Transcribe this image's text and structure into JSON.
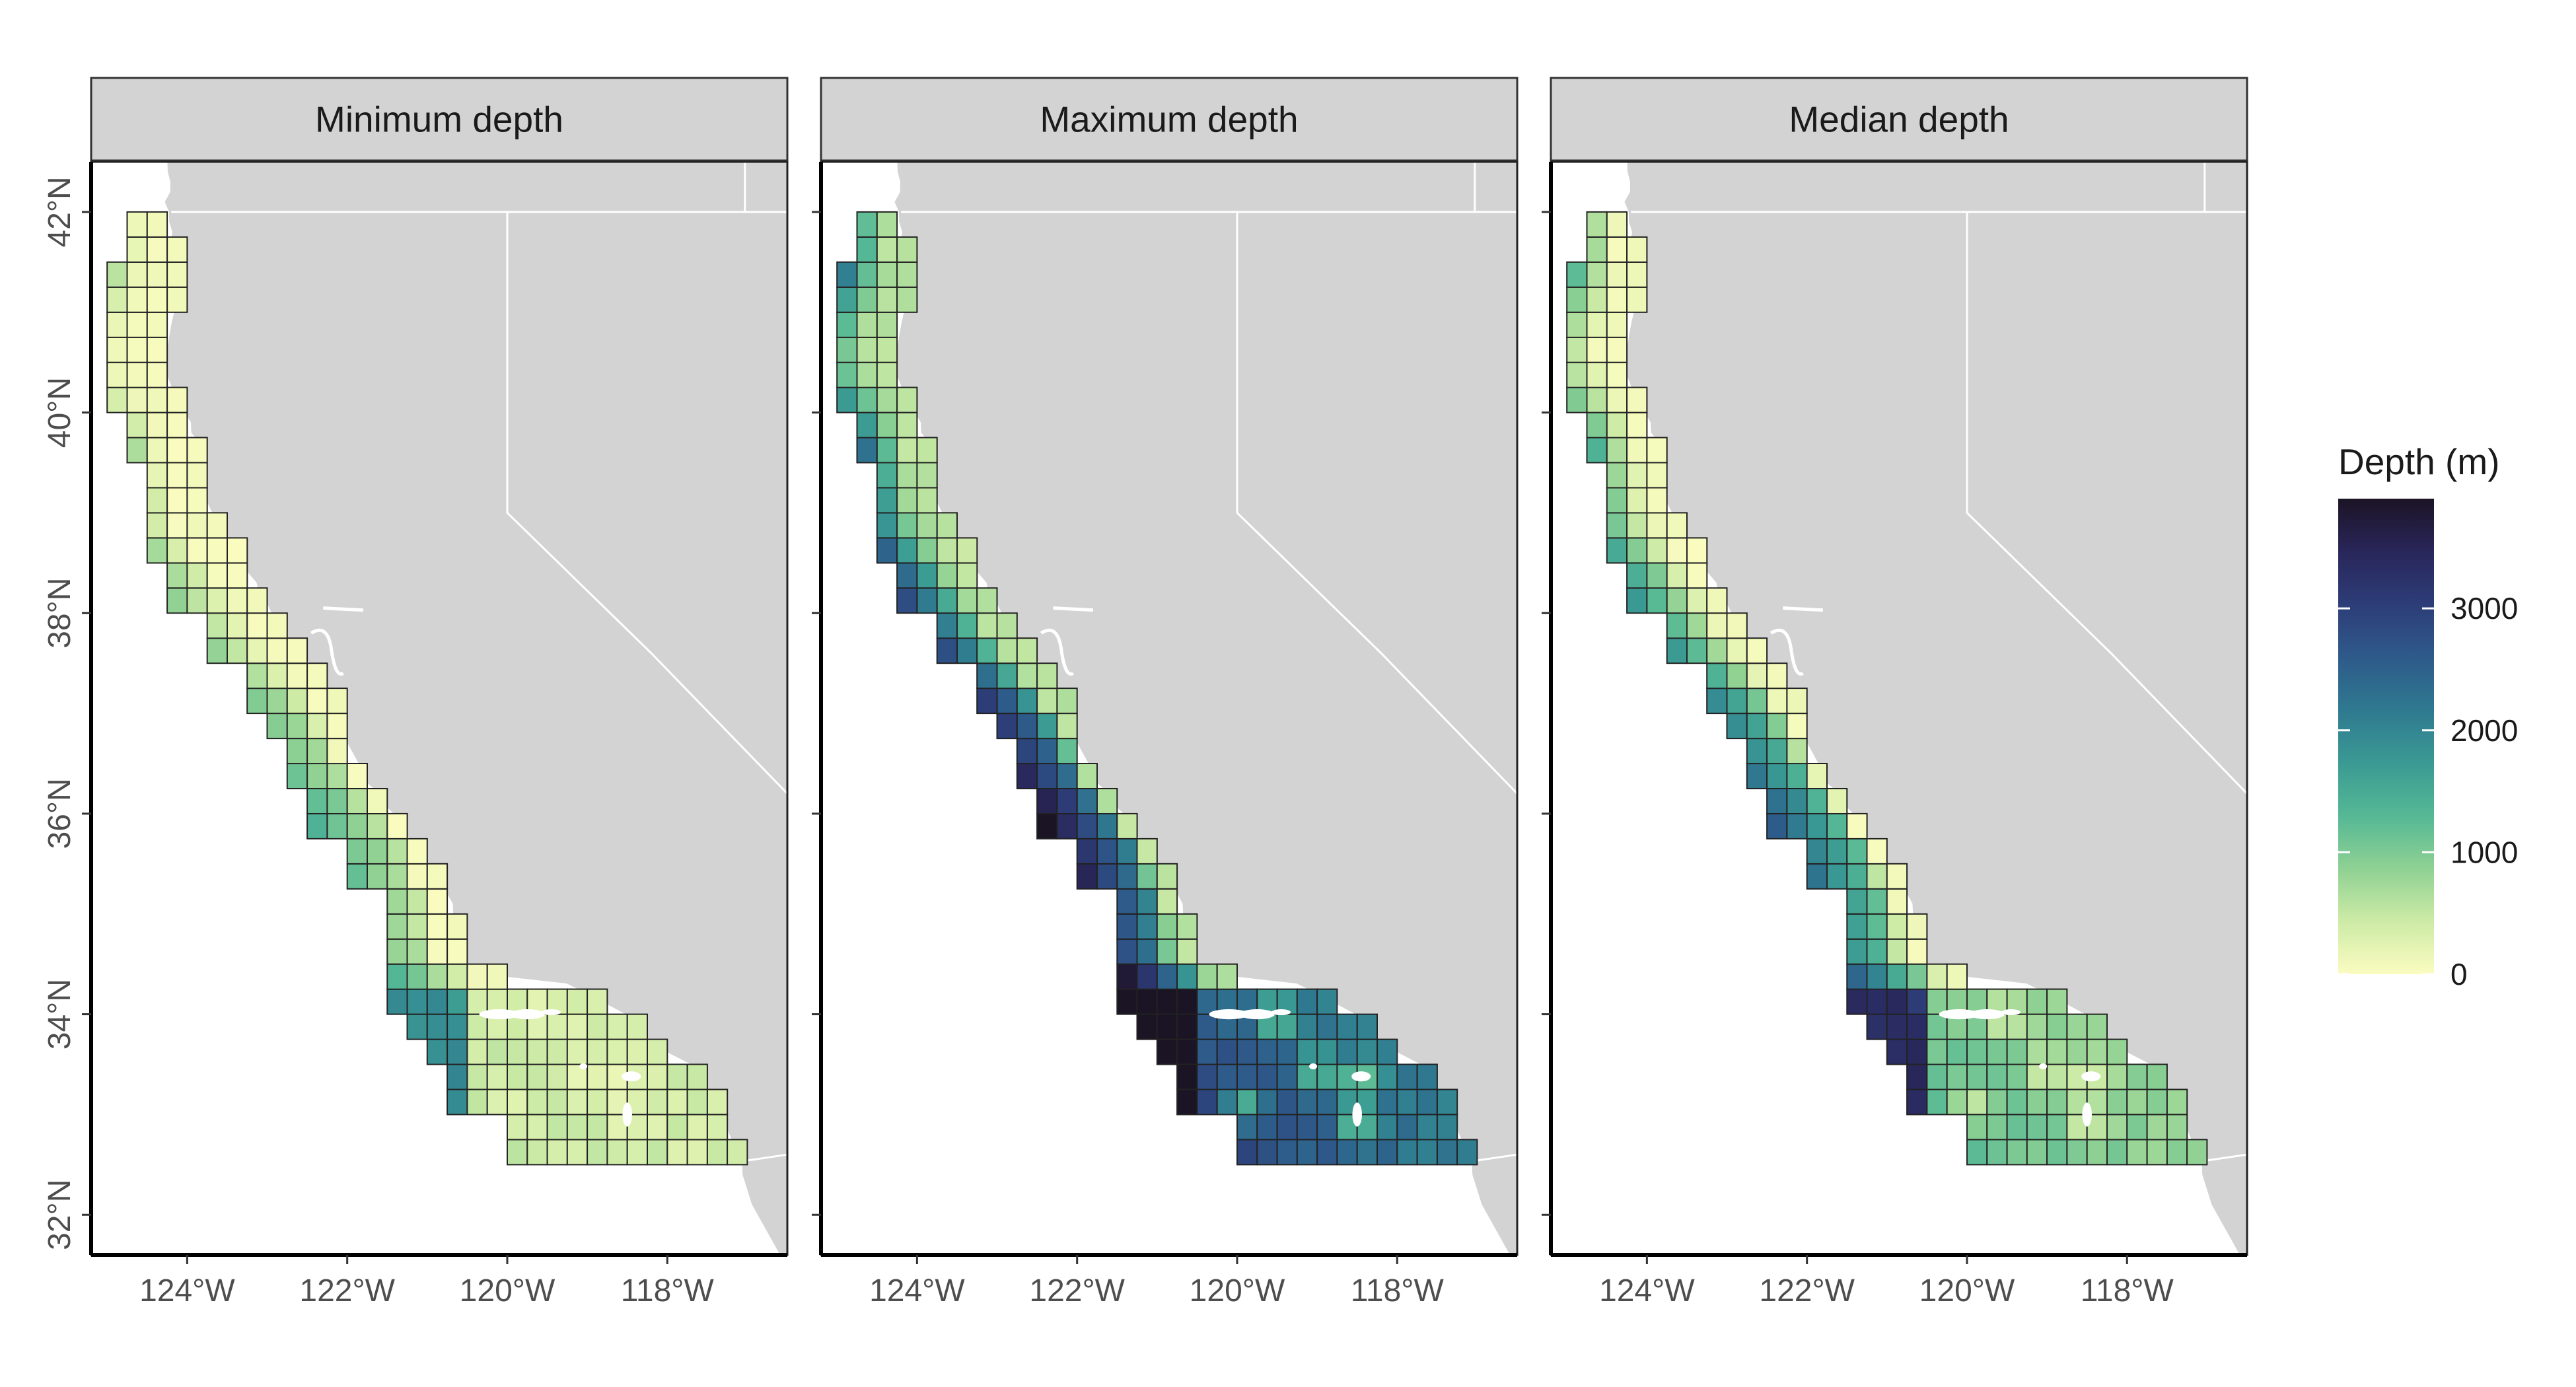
{
  "figure": {
    "panels": [
      {
        "title": "Minimum depth",
        "depth_key": "min"
      },
      {
        "title": "Maximum depth",
        "depth_key": "max"
      },
      {
        "title": "Median depth",
        "depth_key": "median"
      }
    ],
    "x_ticks": [
      {
        "lon": -124,
        "label": "124°W"
      },
      {
        "lon": -122,
        "label": "122°W"
      },
      {
        "lon": -120,
        "label": "120°W"
      },
      {
        "lon": -118,
        "label": "118°W"
      }
    ],
    "y_ticks": [
      {
        "lat": 32,
        "label": "32°N"
      },
      {
        "lat": 34,
        "label": "34°N"
      },
      {
        "lat": 36,
        "label": "36°N"
      },
      {
        "lat": 38,
        "label": "38°N"
      },
      {
        "lat": 40,
        "label": "40°N"
      },
      {
        "lat": 42,
        "label": "42°N"
      }
    ],
    "lon_range": [
      -125.2,
      -116.5
    ],
    "lat_range": [
      31.6,
      42.5
    ],
    "grid_cell_deg": 0.25,
    "legend": {
      "title": "Depth (m)",
      "min": 0,
      "max": 3900,
      "breaks": [
        {
          "value": 0,
          "label": "0"
        },
        {
          "value": 1000,
          "label": "1000"
        },
        {
          "value": 2000,
          "label": "2000"
        },
        {
          "value": 3000,
          "label": "3000"
        }
      ]
    },
    "colors": {
      "land": "#d3d3d3",
      "ocean": "#ffffff",
      "cell_border": "#222222",
      "strip_bg": "#d3d3d3",
      "palette": [
        "#fbfcc0",
        "#cdeba6",
        "#8fd193",
        "#55b895",
        "#3a9a93",
        "#2f7990",
        "#2e5a8a",
        "#2d3d78",
        "#29265a",
        "#1b1425"
      ]
    },
    "coast_profile": [
      {
        "lat": 42.0,
        "coast_lon": -124.25,
        "shelf_deg": 0.55
      },
      {
        "lat": 41.5,
        "coast_lon": -124.15,
        "shelf_deg": 0.65
      },
      {
        "lat": 41.0,
        "coast_lon": -124.15,
        "shelf_deg": 0.95
      },
      {
        "lat": 40.5,
        "coast_lon": -124.35,
        "shelf_deg": 1.05
      },
      {
        "lat": 40.0,
        "coast_lon": -124.05,
        "shelf_deg": 0.75
      },
      {
        "lat": 39.5,
        "coast_lon": -123.8,
        "shelf_deg": 0.7
      },
      {
        "lat": 39.0,
        "coast_lon": -123.7,
        "shelf_deg": 0.8
      },
      {
        "lat": 38.5,
        "coast_lon": -123.3,
        "shelf_deg": 0.8
      },
      {
        "lat": 38.0,
        "coast_lon": -122.95,
        "shelf_deg": 0.75
      },
      {
        "lat": 37.5,
        "coast_lon": -122.5,
        "shelf_deg": 0.65
      },
      {
        "lat": 37.0,
        "coast_lon": -122.1,
        "shelf_deg": 0.4
      },
      {
        "lat": 36.5,
        "coast_lon": -121.9,
        "shelf_deg": 0.2
      },
      {
        "lat": 36.0,
        "coast_lon": -121.45,
        "shelf_deg": 0.15
      },
      {
        "lat": 35.5,
        "coast_lon": -121.0,
        "shelf_deg": 0.3
      },
      {
        "lat": 35.0,
        "coast_lon": -120.65,
        "shelf_deg": 0.4
      },
      {
        "lat": 34.5,
        "coast_lon": -120.55,
        "shelf_deg": 0.5
      },
      {
        "lat": 34.4,
        "coast_lon": -120.4,
        "shelf_deg": 0.5
      },
      {
        "lat": 34.3,
        "coast_lon": -119.3,
        "shelf_deg": 0.6
      },
      {
        "lat": 34.0,
        "coast_lon": -118.5,
        "shelf_deg": 0.6
      },
      {
        "lat": 33.75,
        "coast_lon": -118.3,
        "shelf_deg": 0.5
      },
      {
        "lat": 33.5,
        "coast_lon": -117.75,
        "shelf_deg": 0.4
      },
      {
        "lat": 33.0,
        "coast_lon": -117.3,
        "shelf_deg": 0.3
      },
      {
        "lat": 32.7,
        "coast_lon": -117.15,
        "shelf_deg": 0.3
      },
      {
        "lat": 32.5,
        "coast_lon": -117.05,
        "shelf_deg": 0.3
      }
    ],
    "grid_extent": [
      {
        "lat_from": 41.5,
        "lat_to": 42.0,
        "west_lon": -124.75
      },
      {
        "lat_from": 40.5,
        "lat_to": 41.5,
        "west_lon": -125.0
      },
      {
        "lat_from": 40.0,
        "lat_to": 40.5,
        "west_lon": -125.0
      },
      {
        "lat_from": 39.5,
        "lat_to": 40.0,
        "west_lon": -124.75
      },
      {
        "lat_from": 39.0,
        "lat_to": 39.5,
        "west_lon": -124.5
      },
      {
        "lat_from": 38.5,
        "lat_to": 39.0,
        "west_lon": -124.5
      },
      {
        "lat_from": 38.0,
        "lat_to": 38.5,
        "west_lon": -124.25
      },
      {
        "lat_from": 37.5,
        "lat_to": 38.0,
        "west_lon": -123.75
      },
      {
        "lat_from": 37.0,
        "lat_to": 37.5,
        "west_lon": -123.25
      },
      {
        "lat_from": 36.75,
        "lat_to": 37.0,
        "west_lon": -123.0
      },
      {
        "lat_from": 36.25,
        "lat_to": 36.75,
        "west_lon": -122.75
      },
      {
        "lat_from": 35.75,
        "lat_to": 36.25,
        "west_lon": -122.5
      },
      {
        "lat_from": 35.25,
        "lat_to": 35.75,
        "west_lon": -122.0
      },
      {
        "lat_from": 34.75,
        "lat_to": 35.25,
        "west_lon": -121.5
      },
      {
        "lat_from": 34.0,
        "lat_to": 34.75,
        "west_lon": -121.5
      },
      {
        "lat_from": 33.75,
        "lat_to": 34.0,
        "west_lon": -121.25
      },
      {
        "lat_from": 33.5,
        "lat_to": 33.75,
        "west_lon": -121.0
      },
      {
        "lat_from": 33.0,
        "lat_to": 33.5,
        "west_lon": -120.75
      },
      {
        "lat_from": 32.75,
        "lat_to": 33.0,
        "west_lon": -120.0
      },
      {
        "lat_from": 32.5,
        "lat_to": 32.75,
        "west_lon": -120.0
      }
    ]
  }
}
